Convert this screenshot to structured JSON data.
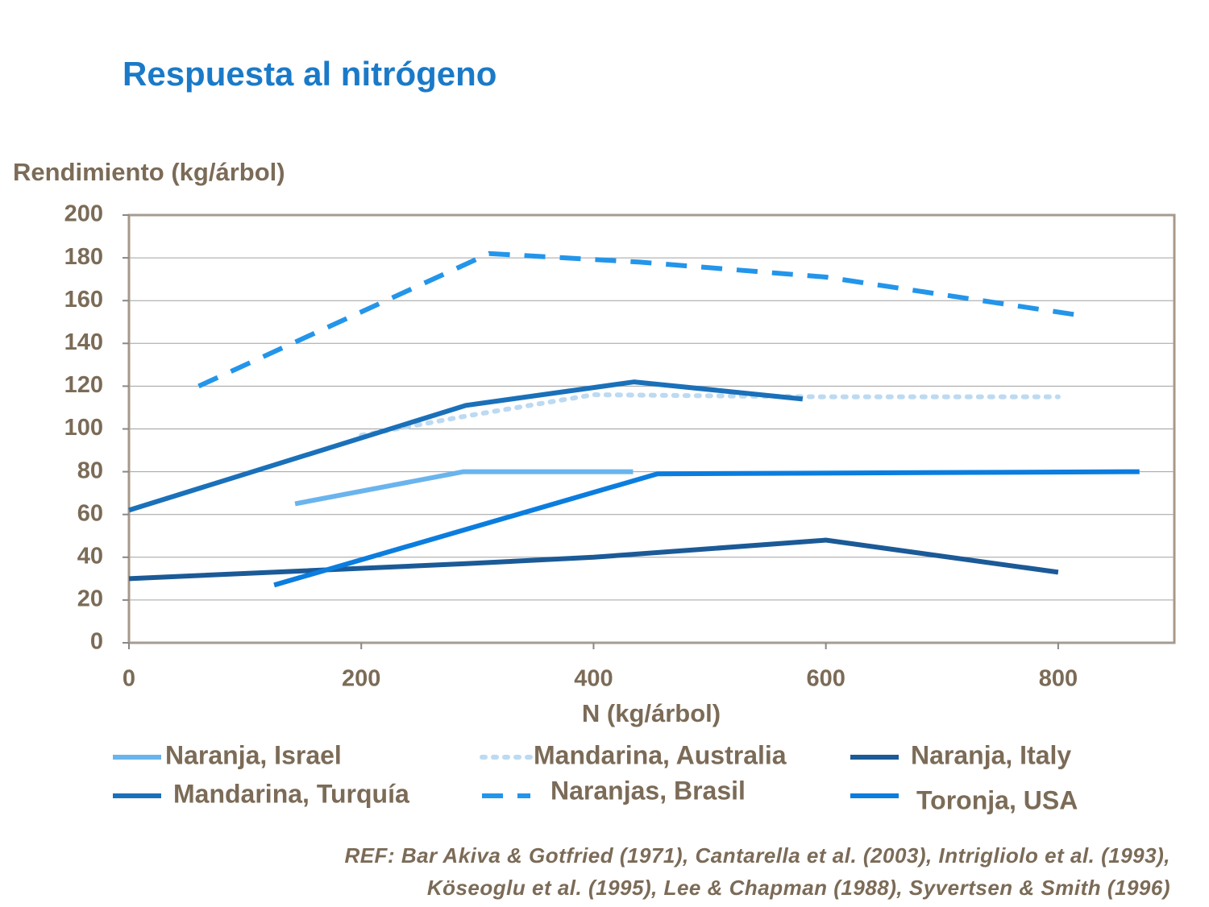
{
  "chart_data": {
    "type": "line",
    "title": "Respuesta al nitrógeno",
    "y_label": "Rendimiento (kg/árbol)",
    "x_label": "N (kg/árbol)",
    "note_lines": [
      "REF: Bar Akiva & Gotfried  (1971), Cantarella et al. (2003), Intrigliolo et al. (1993),",
      "Köseoglu et al. (1995), Lee & Chapman (1988), Syvertsen & Smith (1996)"
    ],
    "xlim": [
      0,
      900
    ],
    "xticks": [
      0,
      200,
      400,
      600,
      800
    ],
    "ylim": [
      0,
      200
    ],
    "yticks": [
      0,
      20,
      40,
      60,
      80,
      100,
      120,
      140,
      160,
      180,
      200
    ],
    "grid": true,
    "series": [
      {
        "name": "Naranja, Israel",
        "color": "#6ab4ee",
        "style": "solid",
        "x": [
          143,
          288,
          434
        ],
        "values": [
          65,
          80,
          80
        ]
      },
      {
        "name": "Mandarina, Australia",
        "color": "#bcdaf2",
        "style": "dotted",
        "x": [
          200,
          290,
          400,
          600,
          800
        ],
        "values": [
          97,
          106,
          116,
          115,
          115
        ]
      },
      {
        "name": "Naranja, Italy",
        "color": "#1b5a97",
        "style": "solid",
        "x": [
          0,
          290,
          400,
          600,
          800
        ],
        "values": [
          30,
          37,
          40,
          48,
          33
        ]
      },
      {
        "name": "Mandarina, Turquía",
        "color": "#1a70b9",
        "style": "solid",
        "x": [
          0,
          290,
          435,
          580
        ],
        "values": [
          62,
          111,
          122,
          114
        ]
      },
      {
        "name": "Naranjas, Brasil",
        "color": "#2395ea",
        "style": "dashed",
        "x": [
          60,
          310,
          440,
          600,
          820
        ],
        "values": [
          120,
          182,
          178,
          171,
          153
        ]
      },
      {
        "name": "Toronja, USA",
        "color": "#0b7ddf",
        "style": "solid",
        "x": [
          125,
          455,
          870
        ],
        "values": [
          27,
          79,
          80
        ]
      }
    ]
  }
}
